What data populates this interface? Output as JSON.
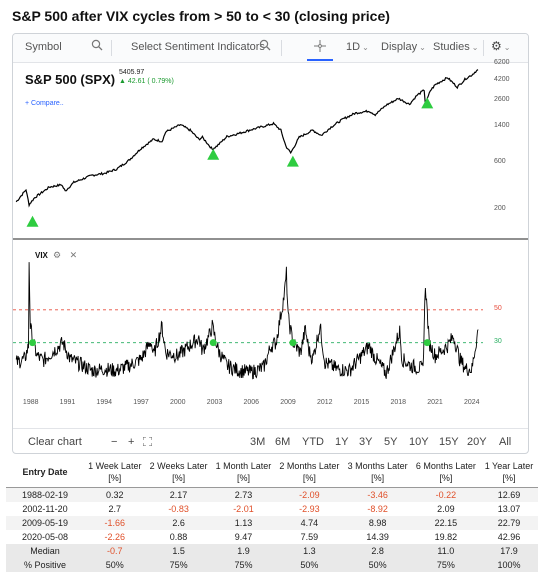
{
  "page": {
    "title": "S&P 500 after VIX cycles from > 50 to < 30 (closing price)"
  },
  "toolbar": {
    "symbol_placeholder": "Symbol",
    "search_icon": "search-icon",
    "sentiment_placeholder": "Select Sentiment Indicators",
    "crosshair_icon": "crosshair-icon",
    "interval": "1D",
    "display": "Display",
    "studies": "Studies",
    "settings_icon": "gear-icon"
  },
  "price_pane": {
    "symbol_label": "S&P 500 (SPX)",
    "last_price": "5405.97",
    "change": "▲ 42.61 ( 0.79%)",
    "compare_label": "+ Compare..",
    "up_color": "#1a9a2e"
  },
  "vix_pane": {
    "label": "VIX",
    "gear_icon": "gear-icon",
    "close_icon": "close-icon"
  },
  "chart_data": [
    {
      "type": "line",
      "title": "S&P 500 (SPX)",
      "y_scale": "log",
      "y_ticks": [
        200,
        600,
        1400,
        2600,
        4200,
        6200
      ],
      "ylim": [
        100,
        6200
      ],
      "x_ticks": [
        1988,
        1991,
        1994,
        1997,
        2000,
        2003,
        2006,
        2009,
        2012,
        2015,
        2018,
        2021,
        2024
      ],
      "xlim": [
        1986.7,
        2024.9
      ],
      "series": [
        {
          "x": [
            1986.8,
            1987.6,
            1987.85,
            1988.3,
            1989.5,
            1990.5,
            1990.8,
            1991.5,
            1993,
            1994,
            1995,
            1996,
            1997,
            1998,
            1998.7,
            1999,
            2000.2,
            2001,
            2001.7,
            2002,
            2002.8,
            2003.2,
            2004,
            2005,
            2006,
            2007.8,
            2008.4,
            2008.8,
            2009.2,
            2009.9,
            2011,
            2011.7,
            2012.5,
            2013.5,
            2014.5,
            2015.6,
            2016.1,
            2017,
            2018,
            2018.9,
            2019.5,
            2020.1,
            2020.2,
            2020.6,
            2021,
            2022,
            2022.8,
            2023.5,
            2024,
            2024.3,
            2024.5
          ],
          "values": [
            240,
            320,
            225,
            265,
            340,
            360,
            310,
            380,
            450,
            470,
            520,
            640,
            850,
            1050,
            1000,
            1250,
            1480,
            1300,
            1050,
            1100,
            830,
            900,
            1120,
            1210,
            1320,
            1520,
            1300,
            900,
            760,
            1100,
            1300,
            1150,
            1400,
            1700,
            1950,
            2050,
            1880,
            2350,
            2750,
            2400,
            2950,
            3350,
            2400,
            3300,
            3800,
            4500,
            3600,
            4400,
            4800,
            5200,
            5400
          ]
        }
      ],
      "markers": [
        {
          "label": "signal",
          "x": 1988.13,
          "y": 150
        },
        {
          "label": "signal",
          "x": 2002.88,
          "y": 730
        },
        {
          "label": "signal",
          "x": 2009.38,
          "y": 620
        },
        {
          "label": "signal",
          "x": 2020.35,
          "y": 2450
        }
      ],
      "marker_color": "#2ecc40",
      "grid": false
    },
    {
      "type": "line",
      "title": "VIX",
      "y_ticks": [
        30,
        50
      ],
      "ylim": [
        0,
        90
      ],
      "xlim": [
        1986.7,
        2024.9
      ],
      "x_ticks": [
        1988,
        1991,
        1994,
        1997,
        2000,
        2003,
        2006,
        2009,
        2012,
        2015,
        2018,
        2021,
        2024
      ],
      "reference_lines": [
        {
          "value": 50,
          "color": "#e74c3c",
          "style": "dashed"
        },
        {
          "value": 30,
          "color": "#27ae60",
          "style": "dashed"
        }
      ],
      "series": [
        {
          "x": [
            1986.8,
            1987.5,
            1987.8,
            1987.85,
            1987.95,
            1988.2,
            1988.5,
            1989,
            1990.6,
            1990.8,
            1991.2,
            1992,
            1993,
            1994,
            1995,
            1996,
            1997,
            1997.8,
            1998,
            1998.7,
            1999,
            2000,
            2001.7,
            2002,
            2002.6,
            2002.8,
            2003.3,
            2004,
            2005,
            2006,
            2007,
            2007.6,
            2008,
            2008.7,
            2008.85,
            2009,
            2009.4,
            2010,
            2010.4,
            2010.7,
            2011,
            2011.6,
            2012,
            2013,
            2014,
            2015.6,
            2016,
            2017,
            2018.1,
            2018.3,
            2019,
            2020,
            2020.2,
            2020.5,
            2021,
            2022,
            2022.5,
            2023,
            2023.5,
            2024,
            2024.5
          ],
          "values": [
            18,
            20,
            28,
            80,
            40,
            30,
            22,
            19,
            30,
            27,
            20,
            17,
            13,
            14,
            13,
            16,
            20,
            31,
            22,
            40,
            24,
            22,
            33,
            25,
            35,
            40,
            25,
            16,
            13,
            12,
            15,
            28,
            30,
            60,
            72,
            45,
            30,
            24,
            38,
            25,
            20,
            40,
            18,
            14,
            13,
            28,
            22,
            11,
            37,
            20,
            16,
            14,
            66,
            30,
            22,
            28,
            34,
            20,
            14,
            14,
            38
          ]
        }
      ]
    }
  ],
  "range_bar": {
    "clear_label": "Clear chart",
    "zoom_out": "−",
    "zoom_in": "+",
    "fit_icon": "fit-screen-icon",
    "ranges": [
      "3M",
      "6M",
      "YTD",
      "1Y",
      "3Y",
      "5Y",
      "10Y",
      "15Y",
      "20Y",
      "All"
    ]
  },
  "table": {
    "headers": [
      "Entry Date",
      "1 Week Later [%]",
      "2 Weeks Later [%]",
      "1 Month Later [%]",
      "2 Months Later [%]",
      "3 Months Later [%]",
      "6 Months Later [%]",
      "1 Year Later [%]"
    ],
    "rows": [
      [
        "1988-02-19",
        "0.32",
        "2.17",
        "2.73",
        "-2.09",
        "-3.46",
        "-0.22",
        "12.69"
      ],
      [
        "2002-11-20",
        "2.7",
        "-0.83",
        "-2.01",
        "-2.93",
        "-8.92",
        "2.09",
        "13.07"
      ],
      [
        "2009-05-19",
        "-1.66",
        "2.6",
        "1.13",
        "4.74",
        "8.98",
        "22.15",
        "22.79"
      ],
      [
        "2020-05-08",
        "-2.26",
        "0.88",
        "9.47",
        "7.59",
        "14.39",
        "19.82",
        "42.96"
      ]
    ],
    "summary": [
      [
        "Median",
        "-0.7",
        "1.5",
        "1.9",
        "1.3",
        "2.8",
        "11.0",
        "17.9"
      ],
      [
        "% Positive",
        "50%",
        "75%",
        "75%",
        "50%",
        "50%",
        "75%",
        "100%"
      ]
    ],
    "negative_color": "#e0502a"
  }
}
